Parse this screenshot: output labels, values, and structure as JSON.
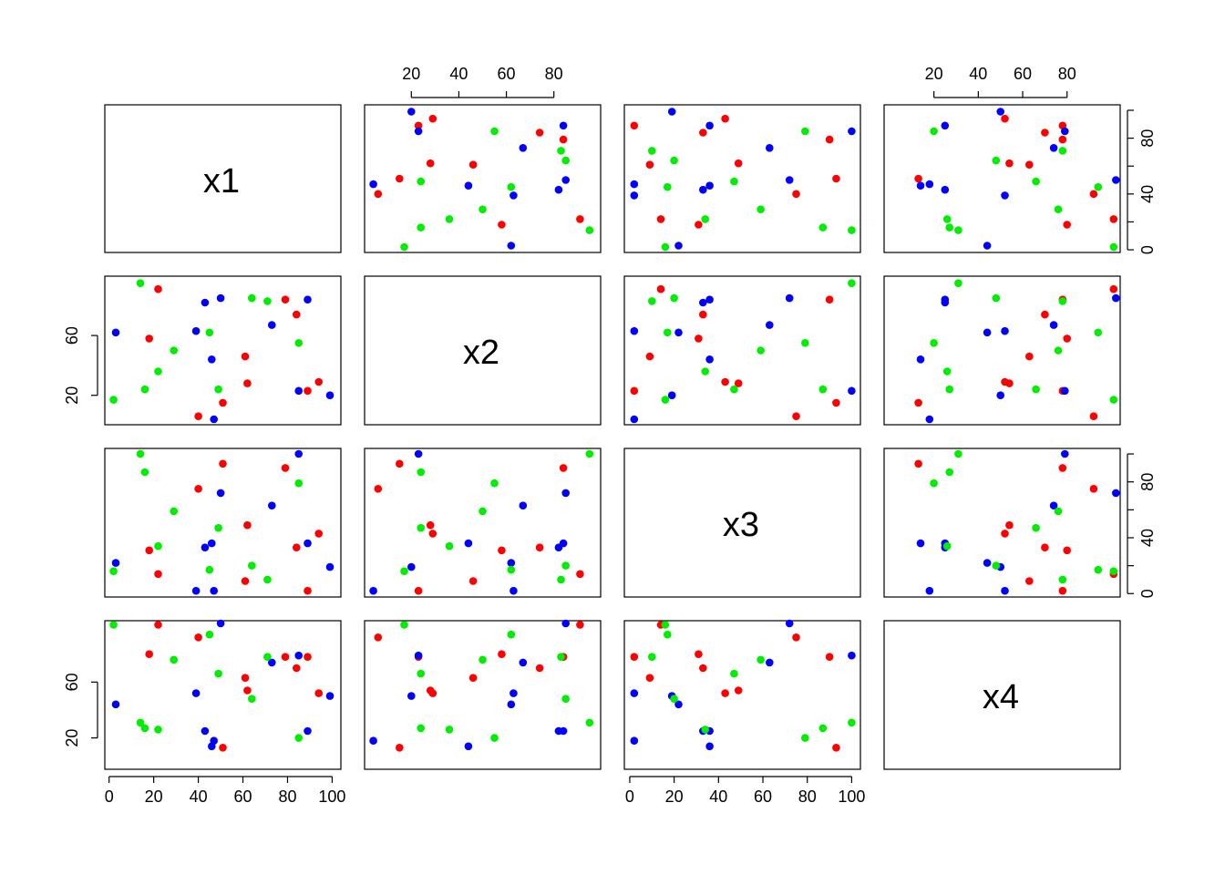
{
  "chart_data": {
    "type": "scatter-matrix",
    "variables": [
      "x1",
      "x2",
      "x3",
      "x4"
    ],
    "var_ranges": {
      "x1": [
        2,
        100
      ],
      "x2": [
        4,
        96
      ],
      "x3": [
        1.5,
        100
      ],
      "x4": [
        1.5,
        100
      ]
    },
    "axis_ticks": {
      "x1": [
        0,
        20,
        40,
        60,
        80,
        100
      ],
      "x2": [
        20,
        40,
        60,
        80
      ],
      "x3": [
        0,
        20,
        40,
        60,
        80,
        100
      ],
      "x4": [
        20,
        40,
        60,
        80
      ]
    },
    "axis_tick_labels": {
      "x1": [
        "0",
        "20",
        "40",
        "60",
        "80",
        "100"
      ],
      "x2": [
        "20",
        "40",
        "60",
        "80"
      ],
      "x3": [
        "0",
        "20",
        "40",
        "60",
        "80",
        "100"
      ],
      "x4": [
        "20",
        "40",
        "60",
        "80"
      ]
    },
    "left_axis_ticks": {
      "x2": [
        20,
        60
      ],
      "x4": [
        20,
        60
      ]
    },
    "left_axis_tick_labels": {
      "x2": [
        "20",
        "60"
      ],
      "x4": [
        "20",
        "60"
      ]
    },
    "right_axis_ticks": {
      "x1": [
        0,
        20,
        40,
        60,
        80,
        100
      ],
      "x3": [
        0,
        20,
        40,
        60,
        80,
        100
      ]
    },
    "right_axis_tick_labels": {
      "x1": [
        "0",
        "40",
        "80"
      ],
      "x3": [
        "0",
        "40",
        "80"
      ]
    },
    "groups": [
      {
        "name": "red",
        "color": "#ff0000"
      },
      {
        "name": "green",
        "color": "#00ee00"
      },
      {
        "name": "blue",
        "color": "#0000ff"
      }
    ],
    "points": [
      {
        "group": "red",
        "x1": 40,
        "x2": 6,
        "x3": 75,
        "x4": 92
      },
      {
        "group": "red",
        "x1": 51,
        "x2": 15,
        "x3": 93,
        "x4": 13
      },
      {
        "group": "red",
        "x1": 61,
        "x2": 46,
        "x3": 9,
        "x4": 63
      },
      {
        "group": "red",
        "x1": 89,
        "x2": 23,
        "x3": 2,
        "x4": 78
      },
      {
        "group": "red",
        "x1": 62,
        "x2": 28,
        "x3": 49,
        "x4": 54
      },
      {
        "group": "red",
        "x1": 79,
        "x2": 84,
        "x3": 90,
        "x4": 78
      },
      {
        "group": "red",
        "x1": 94,
        "x2": 29,
        "x3": 43,
        "x4": 52
      },
      {
        "group": "red",
        "x1": 22,
        "x2": 91,
        "x3": 14,
        "x4": 101
      },
      {
        "group": "red",
        "x1": 18,
        "x2": 58,
        "x3": 31,
        "x4": 80
      },
      {
        "group": "red",
        "x1": 84,
        "x2": 74,
        "x3": 33,
        "x4": 70
      },
      {
        "group": "blue",
        "x1": 47,
        "x2": 4,
        "x3": 2,
        "x4": 18
      },
      {
        "group": "blue",
        "x1": 50,
        "x2": 85,
        "x3": 72,
        "x4": 102
      },
      {
        "group": "blue",
        "x1": 3,
        "x2": 62,
        "x3": 22,
        "x4": 44
      },
      {
        "group": "blue",
        "x1": 99,
        "x2": 20,
        "x3": 19,
        "x4": 50
      },
      {
        "group": "blue",
        "x1": 73,
        "x2": 67,
        "x3": 63,
        "x4": 74
      },
      {
        "group": "blue",
        "x1": 46,
        "x2": 44,
        "x3": 36,
        "x4": 14
      },
      {
        "group": "blue",
        "x1": 43,
        "x2": 82,
        "x3": 33,
        "x4": 25
      },
      {
        "group": "blue",
        "x1": 89,
        "x2": 84,
        "x3": 36,
        "x4": 25
      },
      {
        "group": "blue",
        "x1": 85,
        "x2": 23,
        "x3": 100,
        "x4": 79
      },
      {
        "group": "blue",
        "x1": 39,
        "x2": 63,
        "x3": 2,
        "x4": 52
      },
      {
        "group": "green",
        "x1": 2,
        "x2": 17,
        "x3": 16,
        "x4": 101
      },
      {
        "group": "green",
        "x1": 16,
        "x2": 24,
        "x3": 87,
        "x4": 27
      },
      {
        "group": "green",
        "x1": 14,
        "x2": 95,
        "x3": 100,
        "x4": 31
      },
      {
        "group": "green",
        "x1": 22,
        "x2": 36,
        "x3": 34,
        "x4": 26
      },
      {
        "group": "green",
        "x1": 29,
        "x2": 50,
        "x3": 59,
        "x4": 76
      },
      {
        "group": "green",
        "x1": 49,
        "x2": 24,
        "x3": 47,
        "x4": 66
      },
      {
        "group": "green",
        "x1": 45,
        "x2": 62,
        "x3": 17,
        "x4": 94
      },
      {
        "group": "green",
        "x1": 64,
        "x2": 85,
        "x3": 20,
        "x4": 48
      },
      {
        "group": "green",
        "x1": 71,
        "x2": 83,
        "x3": 10,
        "x4": 78
      },
      {
        "group": "green",
        "x1": 85,
        "x2": 55,
        "x3": 79,
        "x4": 20
      }
    ]
  }
}
